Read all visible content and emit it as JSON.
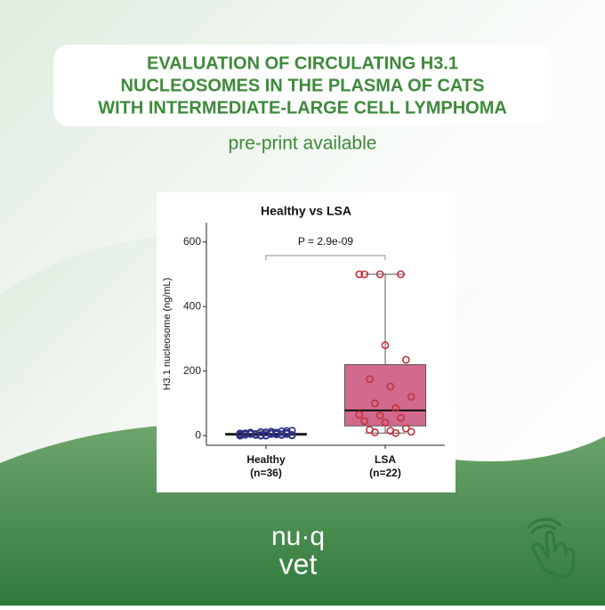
{
  "header": {
    "title_lines": [
      "EVALUATION OF CIRCULATING H3.1",
      "NUCLEOSOMES IN THE PLASMA OF CATS",
      "WITH INTERMEDIATE-LARGE CELL LYMPHOMA"
    ],
    "subtitle": "pre-print available"
  },
  "logo": {
    "top": "nu·q",
    "bottom": "vet"
  },
  "chart_data": {
    "type": "box",
    "title": "Healthy vs LSA",
    "y_label": "H3.1 nucleosome (ng/mL)",
    "annotation": "P = 2.9e-09",
    "categories": [
      "Healthy",
      "LSA"
    ],
    "count_labels": [
      "(n=36)",
      "(n=22)"
    ],
    "ylim": [
      -30,
      660
    ],
    "yticks": [
      0,
      200,
      400,
      600
    ],
    "series": [
      {
        "name": "Healthy",
        "color": "#8fc3cf",
        "point_color": "#2a2f86",
        "whisker_low": 0,
        "q1": 1,
        "median": 4,
        "q3": 7,
        "whisker_high": 15,
        "points": [
          0,
          1,
          2,
          3,
          1,
          5,
          8,
          12,
          15,
          4,
          6,
          2,
          0,
          3,
          7,
          10,
          14,
          9,
          5,
          1,
          2,
          4,
          6,
          11,
          13,
          3,
          0,
          8,
          5,
          7,
          2,
          4,
          9,
          6,
          1,
          3
        ]
      },
      {
        "name": "LSA",
        "color": "#c9507a",
        "point_color": "#c3313b",
        "whisker_low": 8,
        "q1": 30,
        "median": 78,
        "q3": 220,
        "whisker_high": 500,
        "points": [
          500,
          500,
          500,
          500,
          280,
          235,
          175,
          152,
          120,
          100,
          85,
          65,
          62,
          55,
          45,
          40,
          22,
          18,
          15,
          12,
          10,
          8
        ]
      }
    ]
  }
}
